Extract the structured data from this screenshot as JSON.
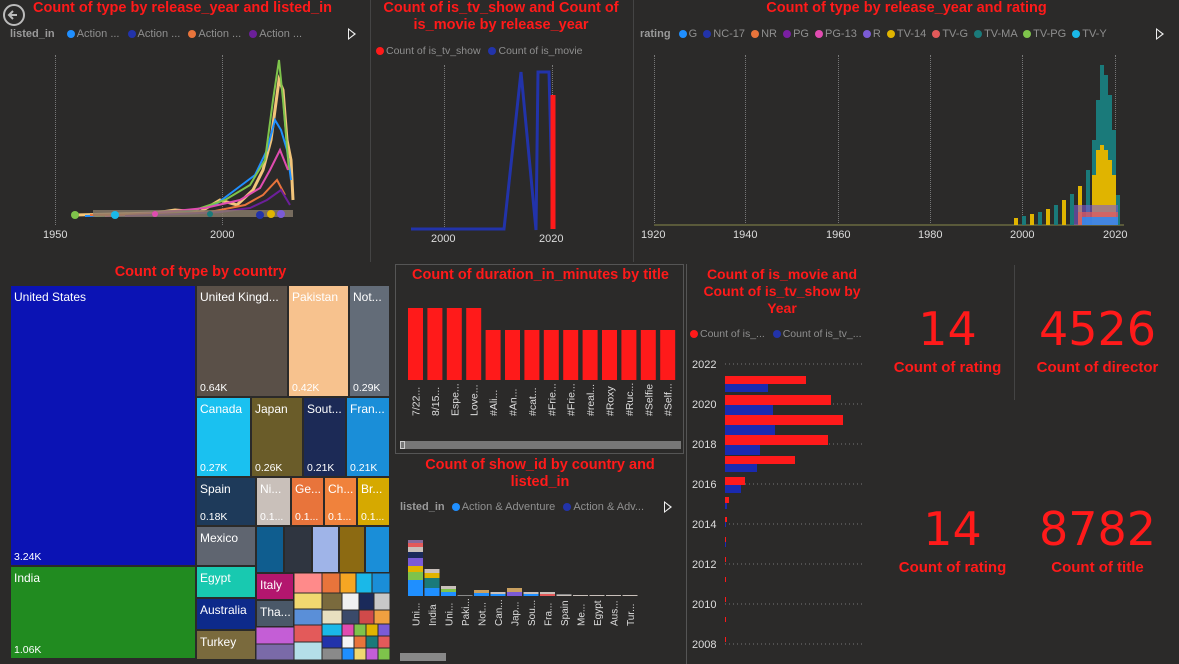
{
  "back_button_icon": "back-arrow-icon",
  "chart1": {
    "title": "Count of type by release_year and listed_in",
    "legend_label": "listed_in",
    "legend_items": [
      {
        "name": "Action ...",
        "color": "#1f8fff"
      },
      {
        "name": "Action ...",
        "color": "#2233aa"
      },
      {
        "name": "Action ...",
        "color": "#e8743b"
      },
      {
        "name": "Action ...",
        "color": "#6b1f99"
      }
    ],
    "x_ticks": [
      "1950",
      "2000"
    ]
  },
  "chart2": {
    "title": "Count of is_tv_show and Count of is_movie by release_year",
    "legend_items": [
      {
        "name": "Count of is_tv_show",
        "color": "#ff1a1a"
      },
      {
        "name": "Count of is_movie",
        "color": "#2233aa"
      }
    ],
    "x_ticks": [
      "2000",
      "2020"
    ]
  },
  "chart3": {
    "title": "Count of type by release_year and rating",
    "legend_label": "rating",
    "legend_items": [
      {
        "name": "G",
        "color": "#1f8fff"
      },
      {
        "name": "NC-17",
        "color": "#2233aa"
      },
      {
        "name": "NR",
        "color": "#e8743b"
      },
      {
        "name": "PG",
        "color": "#7a1fa2"
      },
      {
        "name": "PG-13",
        "color": "#e04cb0"
      },
      {
        "name": "R",
        "color": "#7b5bd6"
      },
      {
        "name": "TV-14",
        "color": "#e0b400"
      },
      {
        "name": "TV-G",
        "color": "#e35a5a"
      },
      {
        "name": "TV-MA",
        "color": "#1a7a7a"
      },
      {
        "name": "TV-PG",
        "color": "#7ec34b"
      },
      {
        "name": "TV-Y",
        "color": "#1ab8e8"
      }
    ],
    "x_ticks": [
      "1920",
      "1940",
      "1960",
      "1980",
      "2000",
      "2020"
    ]
  },
  "treemap": {
    "title": "Count of type by country",
    "tiles": [
      {
        "label": "United States",
        "value": "3.24K"
      },
      {
        "label": "India",
        "value": "1.06K"
      },
      {
        "label": "United Kingd...",
        "value": "0.64K"
      },
      {
        "label": "Pakistan",
        "value": "0.42K"
      },
      {
        "label": "Not...",
        "value": "0.29K"
      },
      {
        "label": "Canada",
        "value": "0.27K"
      },
      {
        "label": "Japan",
        "value": "0.26K"
      },
      {
        "label": "Sout...",
        "value": "0.21K"
      },
      {
        "label": "Fran...",
        "value": "0.21K"
      },
      {
        "label": "Spain",
        "value": "0.18K"
      },
      {
        "label": "Ni...",
        "value": "0.1..."
      },
      {
        "label": "Ge...",
        "value": "0.1..."
      },
      {
        "label": "Ch...",
        "value": "0.1..."
      },
      {
        "label": "Br...",
        "value": "0.1..."
      },
      {
        "label": "Mexico",
        "value": ""
      },
      {
        "label": "Egypt",
        "value": ""
      },
      {
        "label": "Italy",
        "value": ""
      },
      {
        "label": "Australia",
        "value": ""
      },
      {
        "label": "Tha...",
        "value": ""
      },
      {
        "label": "Turkey",
        "value": ""
      }
    ]
  },
  "duration_chart": {
    "title": "Count of duration_in_minutes by title",
    "bar_color": "#ff1a1a",
    "categories": [
      "7/22...",
      "8/15...",
      "Espe...",
      "Love...",
      "#Ali...",
      "#An...",
      "#cat...",
      "#Frie...",
      "#Frie...",
      "#real...",
      "#Roxy",
      "#Ruc...",
      "#Selfie",
      "#Self..."
    ]
  },
  "showid_chart": {
    "title": "Count of show_id by country and listed_in",
    "legend_label": "listed_in",
    "legend_items": [
      {
        "name": "Action & Adventure",
        "color": "#1f8fff"
      },
      {
        "name": "Action & Adv...",
        "color": "#2233aa"
      }
    ],
    "categories": [
      "Uni...",
      "India",
      "Uni...",
      "Paki...",
      "Not...",
      "Can...",
      "Jap...",
      "Sou...",
      "Fra...",
      "Spain",
      "Me...",
      "Egypt",
      "Aus...",
      "Tur..."
    ]
  },
  "year_bar_chart": {
    "title": "Count of is_movie and Count of is_tv_show by Year",
    "legend_items": [
      {
        "name": "Count of is_...",
        "color": "#ff1a1a"
      },
      {
        "name": "Count of is_tv_...",
        "color": "#2233aa"
      }
    ],
    "y_ticks": [
      "2022",
      "2020",
      "2018",
      "2016",
      "2014",
      "2012",
      "2010",
      "2008"
    ]
  },
  "kpis": [
    {
      "value": "14",
      "label": "Count of rating"
    },
    {
      "value": "4526",
      "label": "Count of director"
    },
    {
      "value": "14",
      "label": "Count of rating"
    },
    {
      "value": "8782",
      "label": "Count of title"
    }
  ]
}
